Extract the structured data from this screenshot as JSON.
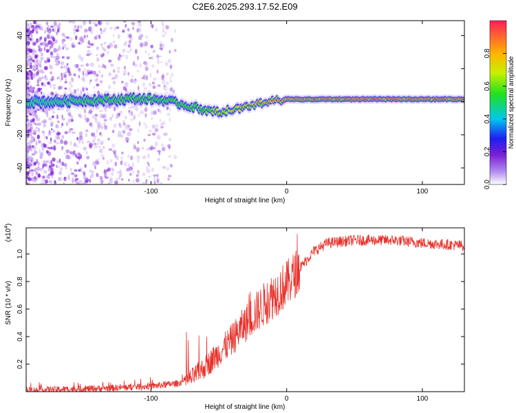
{
  "title": "C2E6.2025.293.17.52.E09",
  "colors": {
    "snr_line": "#e8302a",
    "ridge_high": "#e8302a",
    "scatter": "#7a1fd6",
    "axes": "#000000"
  },
  "chart_data": [
    {
      "id": "spectrogram",
      "type": "heatmap",
      "xlabel": "Height of straight line (km)",
      "ylabel": "Frequency (Hz)",
      "xlim": [
        -192,
        131
      ],
      "ylim": [
        -50,
        49
      ],
      "xticks": [
        -100,
        0,
        100
      ],
      "xtick_labels": [
        "-100",
        "0",
        "100"
      ],
      "yticks": [
        -40,
        -20,
        0,
        20,
        40
      ],
      "ytick_labels": [
        "-40",
        "-20",
        "0",
        "20",
        "40"
      ],
      "ridge": {
        "x": [
          -190,
          -170,
          -150,
          -130,
          -110,
          -90,
          -75,
          -60,
          -50,
          -40,
          -30,
          -20,
          -10,
          0,
          20,
          40,
          60,
          80,
          100,
          131
        ],
        "y": [
          0,
          0,
          1,
          1,
          2,
          1,
          -2,
          -5,
          -6,
          -5,
          -3,
          -1,
          0.5,
          1.5,
          1.5,
          1.5,
          1.5,
          1.5,
          1.5,
          1.5
        ]
      },
      "ridge_amplitude": [
        0.3,
        0.3,
        0.45,
        0.5,
        0.55,
        0.5,
        0.55,
        0.6,
        0.65,
        0.7,
        0.75,
        0.8,
        0.85,
        0.9,
        0.95,
        0.95,
        0.95,
        0.95,
        0.95,
        0.95
      ],
      "colorbar": {
        "label": "Normalized spectral amplitude",
        "range": [
          0,
          1
        ],
        "ticks": [
          0.0,
          0.2,
          0.4,
          0.6,
          0.8
        ],
        "tick_labels": [
          "0.0",
          "0.2",
          "0.4",
          "0.6",
          "0.8"
        ]
      }
    },
    {
      "id": "snr",
      "type": "line",
      "xlabel": "Height of straight line (km)",
      "ylabel": "SNR (10 * v/v)",
      "multiplier_label": "(x10",
      "multiplier_exp": "4",
      "multiplier_close": ")",
      "xlim": [
        -192,
        131
      ],
      "ylim": [
        0,
        1.19
      ],
      "xticks": [
        -100,
        0,
        100
      ],
      "xtick_labels": [
        "-100",
        "0",
        "100"
      ],
      "yticks": [
        0.2,
        0.4,
        0.6,
        0.8,
        1.0
      ],
      "ytick_labels": [
        "0.2",
        "0.4",
        "0.6",
        "0.8",
        "1.0"
      ],
      "envelope": {
        "x": [
          -192,
          -150,
          -120,
          -100,
          -80,
          -70,
          -60,
          -50,
          -40,
          -30,
          -20,
          -10,
          0,
          10,
          20,
          30,
          50,
          80,
          100,
          131
        ],
        "y": [
          0.01,
          0.02,
          0.03,
          0.04,
          0.06,
          0.1,
          0.18,
          0.28,
          0.38,
          0.5,
          0.6,
          0.7,
          0.78,
          0.9,
          1.02,
          1.08,
          1.1,
          1.1,
          1.08,
          1.06
        ]
      }
    }
  ]
}
